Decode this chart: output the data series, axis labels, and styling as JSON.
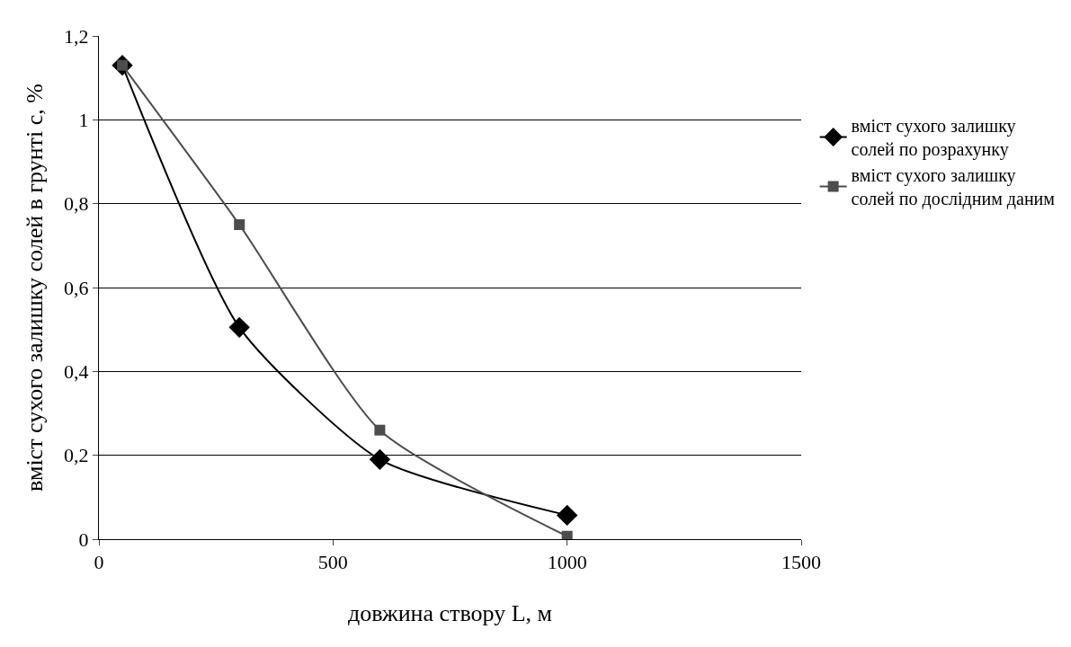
{
  "chart_data": {
    "type": "line",
    "xlabel": "довжина створу L, м",
    "ylabel": "вміст сухого залишку солей в грунті с, %",
    "x": [
      50,
      300,
      600,
      1000
    ],
    "series": [
      {
        "name": "вміст сухого залишку солей по розрахунку",
        "color": "#000000",
        "marker": "diamond",
        "values": [
          1.13,
          0.505,
          0.19,
          0.057
        ]
      },
      {
        "name": "вміст сухого залишку солей по дослідним даним",
        "color": "#4d4d4d",
        "marker": "square",
        "values": [
          1.13,
          0.75,
          0.26,
          0.007
        ]
      }
    ],
    "xlim": [
      0,
      1500
    ],
    "xticks": [
      0,
      500,
      1000,
      1500
    ],
    "ylim": [
      0,
      1.2
    ],
    "yticks": [
      0,
      {
        "value": 0.2,
        "label": "0,2"
      },
      {
        "value": 0.4,
        "label": "0,4"
      },
      {
        "value": 0.6,
        "label": "0,6"
      },
      {
        "value": 0.8,
        "label": "0,8"
      },
      1,
      {
        "value": 1.2,
        "label": "1,2"
      }
    ],
    "grid": "y",
    "legend": "right",
    "line_style": "solid"
  }
}
